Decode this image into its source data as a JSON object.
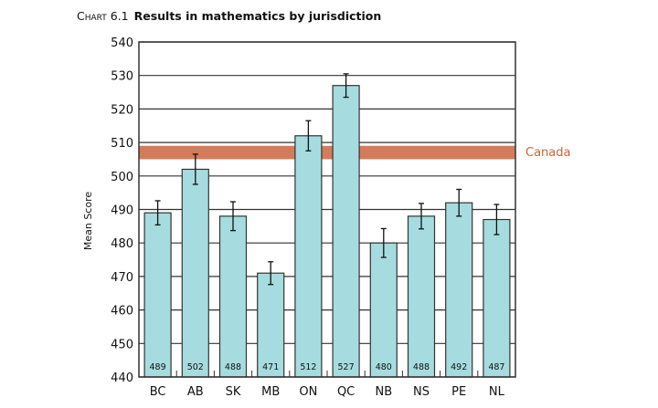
{
  "chart_data": {
    "type": "bar",
    "title_label": "Chart 6.1",
    "title": "Results in mathematics by jurisdiction",
    "xlabel": "",
    "ylabel": "Mean Score",
    "ylim": [
      440,
      540
    ],
    "yticks": [
      440,
      450,
      460,
      470,
      480,
      490,
      500,
      510,
      520,
      530,
      540
    ],
    "grid": true,
    "categories": [
      "BC",
      "AB",
      "SK",
      "MB",
      "ON",
      "QC",
      "NB",
      "NS",
      "PE",
      "NL"
    ],
    "values": [
      489,
      502,
      488,
      471,
      512,
      527,
      480,
      488,
      492,
      487
    ],
    "error": [
      3.6,
      4.5,
      4.3,
      3.4,
      4.5,
      3.5,
      4.3,
      3.8,
      4.0,
      4.5
    ],
    "reference": {
      "label": "Canada",
      "value": 507,
      "lower": 505,
      "upper": 509
    },
    "colors": {
      "bar": "#a6dcdf",
      "reference": "#d47c5a",
      "reference_text": "#c8643c"
    }
  }
}
